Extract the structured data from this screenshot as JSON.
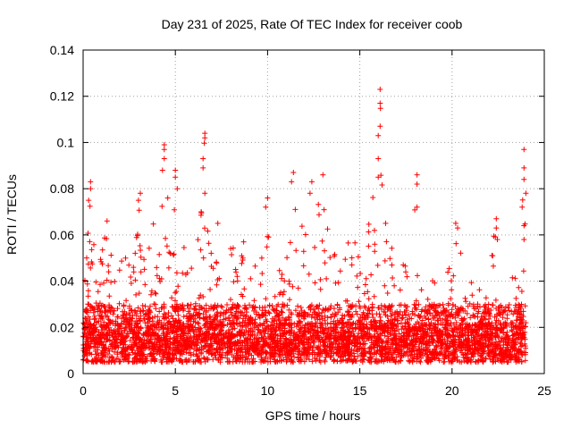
{
  "chart_data": {
    "type": "scatter",
    "title": "Day 231 of 2025, Rate Of TEC Index for receiver coob",
    "xlabel": "GPS time / hours",
    "ylabel": "ROTI / TECUs",
    "xlim": [
      0,
      25
    ],
    "ylim": [
      0,
      0.14
    ],
    "x_ticks": [
      0,
      5,
      10,
      15,
      20,
      25
    ],
    "y_ticks": [
      0,
      0.02,
      0.04,
      0.06,
      0.08,
      0.1,
      0.12,
      0.14
    ],
    "x_tick_labels": [
      "0",
      "5",
      "10",
      "15",
      "20",
      "25"
    ],
    "y_tick_labels": [
      "0",
      "0.02",
      "0.04",
      "0.06",
      "0.08",
      "0.1",
      "0.12",
      "0.14"
    ],
    "grid": true,
    "marker": "+",
    "marker_color": "#ff0000",
    "grid_color": "#a0a0a0",
    "series": [
      {
        "name": "ROTI",
        "x_range": [
          0,
          24
        ],
        "baseline_range": [
          0.005,
          0.03
        ],
        "upper_envelope": [
          [
            0,
            0.04
          ],
          [
            0.2,
            0.06
          ],
          [
            0.4,
            0.083
          ],
          [
            0.6,
            0.06
          ],
          [
            1.0,
            0.055
          ],
          [
            1.4,
            0.066
          ],
          [
            2.0,
            0.05
          ],
          [
            2.8,
            0.05
          ],
          [
            3.1,
            0.078
          ],
          [
            3.5,
            0.06
          ],
          [
            4.0,
            0.07
          ],
          [
            4.4,
            0.099
          ],
          [
            4.8,
            0.07
          ],
          [
            5.0,
            0.088
          ],
          [
            5.6,
            0.05
          ],
          [
            6.0,
            0.045
          ],
          [
            6.6,
            0.104
          ],
          [
            7.0,
            0.06
          ],
          [
            8.0,
            0.058
          ],
          [
            8.7,
            0.057
          ],
          [
            9.0,
            0.05
          ],
          [
            9.6,
            0.045
          ],
          [
            10.0,
            0.076
          ],
          [
            10.3,
            0.04
          ],
          [
            11.0,
            0.05
          ],
          [
            11.4,
            0.087
          ],
          [
            12.0,
            0.07
          ],
          [
            12.5,
            0.083
          ],
          [
            13.0,
            0.086
          ],
          [
            13.6,
            0.06
          ],
          [
            14.0,
            0.05
          ],
          [
            14.5,
            0.06
          ],
          [
            15.2,
            0.06
          ],
          [
            15.6,
            0.07
          ],
          [
            16.1,
            0.123
          ],
          [
            16.5,
            0.06
          ],
          [
            17.0,
            0.05
          ],
          [
            17.6,
            0.048
          ],
          [
            18.1,
            0.086
          ],
          [
            18.6,
            0.045
          ],
          [
            19.0,
            0.04
          ],
          [
            19.6,
            0.04
          ],
          [
            20.2,
            0.065
          ],
          [
            20.7,
            0.045
          ],
          [
            21.2,
            0.04
          ],
          [
            21.8,
            0.035
          ],
          [
            22.4,
            0.067
          ],
          [
            23.0,
            0.045
          ],
          [
            23.6,
            0.04
          ],
          [
            23.9,
            0.097
          ],
          [
            24.0,
            0.06
          ]
        ],
        "notable_points": [
          {
            "x": 16.1,
            "y": 0.123
          },
          {
            "x": 16.1,
            "y": 0.117
          },
          {
            "x": 16.1,
            "y": 0.107
          },
          {
            "x": 16.0,
            "y": 0.103
          },
          {
            "x": 6.6,
            "y": 0.104
          },
          {
            "x": 6.6,
            "y": 0.102
          },
          {
            "x": 4.4,
            "y": 0.099
          },
          {
            "x": 4.4,
            "y": 0.097
          },
          {
            "x": 4.4,
            "y": 0.093
          },
          {
            "x": 4.3,
            "y": 0.088
          },
          {
            "x": 23.9,
            "y": 0.097
          },
          {
            "x": 23.9,
            "y": 0.089
          },
          {
            "x": 23.9,
            "y": 0.084
          },
          {
            "x": 24.0,
            "y": 0.078
          },
          {
            "x": 6.5,
            "y": 0.093
          },
          {
            "x": 6.5,
            "y": 0.089
          },
          {
            "x": 16.0,
            "y": 0.093
          },
          {
            "x": 16.0,
            "y": 0.085
          },
          {
            "x": 5.0,
            "y": 0.088
          },
          {
            "x": 5.0,
            "y": 0.085
          },
          {
            "x": 5.1,
            "y": 0.08
          },
          {
            "x": 11.4,
            "y": 0.087
          },
          {
            "x": 11.3,
            "y": 0.083
          },
          {
            "x": 13.0,
            "y": 0.086
          },
          {
            "x": 18.1,
            "y": 0.086
          },
          {
            "x": 18.1,
            "y": 0.082
          },
          {
            "x": 0.4,
            "y": 0.083
          },
          {
            "x": 0.4,
            "y": 0.08
          },
          {
            "x": 0.3,
            "y": 0.075
          },
          {
            "x": 12.4,
            "y": 0.083
          },
          {
            "x": 12.3,
            "y": 0.078
          },
          {
            "x": 3.1,
            "y": 0.078
          },
          {
            "x": 3.0,
            "y": 0.075
          },
          {
            "x": 10.0,
            "y": 0.076
          },
          {
            "x": 9.9,
            "y": 0.072
          },
          {
            "x": 6.6,
            "y": 0.078
          },
          {
            "x": 18.1,
            "y": 0.072
          },
          {
            "x": 23.8,
            "y": 0.072
          },
          {
            "x": 11.5,
            "y": 0.071
          },
          {
            "x": 22.4,
            "y": 0.067
          },
          {
            "x": 22.4,
            "y": 0.063
          },
          {
            "x": 1.3,
            "y": 0.066
          },
          {
            "x": 20.2,
            "y": 0.065
          },
          {
            "x": 20.3,
            "y": 0.063
          },
          {
            "x": 23.9,
            "y": 0.064
          },
          {
            "x": 23.9,
            "y": 0.058
          },
          {
            "x": 16.4,
            "y": 0.065
          },
          {
            "x": 6.4,
            "y": 0.07
          },
          {
            "x": 8.7,
            "y": 0.057
          },
          {
            "x": 7.3,
            "y": 0.065
          }
        ]
      }
    ]
  }
}
